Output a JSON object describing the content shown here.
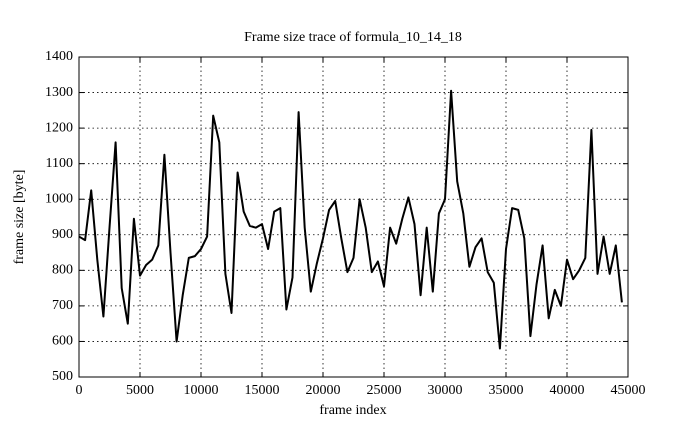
{
  "chart_data": {
    "type": "line",
    "title": "Frame size trace of formula_10_14_18",
    "x_label": "frame index",
    "y_label": "frame size [byte]",
    "xlim": [
      0,
      45000
    ],
    "xticks": [
      0,
      5000,
      10000,
      15000,
      20000,
      25000,
      30000,
      35000,
      40000,
      45000
    ],
    "ylim": [
      500,
      1400
    ],
    "yticks": [
      500,
      600,
      700,
      800,
      900,
      1000,
      1100,
      1200,
      1300,
      1400
    ],
    "grid": true,
    "series": [
      {
        "color": "#000000",
        "x": [
          0,
          500,
          1000,
          1500,
          2000,
          2500,
          3000,
          3500,
          4000,
          4500,
          5000,
          5500,
          6000,
          6500,
          7000,
          7500,
          8000,
          8500,
          9000,
          9500,
          10000,
          10500,
          11000,
          11500,
          12000,
          12500,
          13000,
          13500,
          14000,
          14500,
          15000,
          15500,
          16000,
          16500,
          17000,
          17500,
          18000,
          18500,
          19000,
          19500,
          20000,
          20500,
          21000,
          21500,
          22000,
          22500,
          23000,
          23500,
          24000,
          24500,
          25000,
          25500,
          26000,
          26500,
          27000,
          27500,
          28000,
          28500,
          29000,
          29500,
          30000,
          30500,
          31000,
          31500,
          32000,
          32500,
          33000,
          33500,
          34000,
          34500,
          35000,
          35500,
          36000,
          36500,
          37000,
          37500,
          38000,
          38500,
          39000,
          39500,
          40000,
          40500,
          41000,
          41500,
          42000,
          42500,
          43000,
          43500,
          44000,
          44500
        ],
        "values": [
          895,
          885,
          1025,
          830,
          670,
          920,
          1160,
          750,
          650,
          945,
          785,
          815,
          830,
          870,
          1125,
          850,
          600,
          730,
          835,
          840,
          860,
          895,
          1235,
          1160,
          790,
          680,
          1075,
          965,
          925,
          920,
          930,
          860,
          965,
          975,
          690,
          780,
          1245,
          920,
          740,
          820,
          890,
          970,
          995,
          890,
          795,
          835,
          1000,
          920,
          795,
          825,
          755,
          920,
          875,
          945,
          1005,
          930,
          730,
          920,
          740,
          960,
          1000,
          1305,
          1050,
          960,
          810,
          865,
          890,
          795,
          765,
          580,
          860,
          975,
          970,
          890,
          615,
          760,
          870,
          665,
          745,
          700,
          830,
          775,
          800,
          835,
          1195,
          790,
          895,
          790,
          870,
          710
        ]
      }
    ]
  }
}
